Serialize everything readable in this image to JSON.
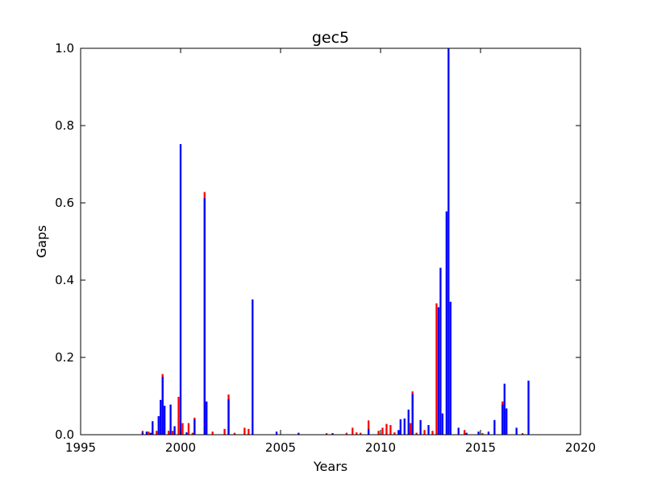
{
  "chart_data": {
    "type": "bar",
    "title": "gec5",
    "xlabel": "Years",
    "ylabel": "Gaps",
    "xlim": [
      1995,
      2020
    ],
    "ylim": [
      0.0,
      1.0
    ],
    "x_ticks": [
      "1995",
      "2000",
      "2005",
      "2010",
      "2015",
      "2020"
    ],
    "y_ticks": [
      "0.0",
      "0.2",
      "0.4",
      "0.6",
      "0.8",
      "1.0"
    ],
    "grid": false,
    "colors": {
      "red_series": "#ff0000",
      "blue_series": "#0000ff",
      "axes": "#000000",
      "background": "#ffffff"
    },
    "series": [
      {
        "color": "#ff0000",
        "points": [
          {
            "x": 1998.1,
            "y": 0.01
          },
          {
            "x": 1998.4,
            "y": 0.008
          },
          {
            "x": 1998.6,
            "y": 0.012
          },
          {
            "x": 1998.8,
            "y": 0.01
          },
          {
            "x": 1999.1,
            "y": 0.157
          },
          {
            "x": 1999.4,
            "y": 0.01
          },
          {
            "x": 1999.6,
            "y": 0.01
          },
          {
            "x": 1999.9,
            "y": 0.098
          },
          {
            "x": 2000.1,
            "y": 0.03
          },
          {
            "x": 2000.4,
            "y": 0.03
          },
          {
            "x": 2000.6,
            "y": 0.005
          },
          {
            "x": 2000.7,
            "y": 0.044
          },
          {
            "x": 2001.2,
            "y": 0.628
          },
          {
            "x": 2001.6,
            "y": 0.008
          },
          {
            "x": 2002.2,
            "y": 0.015
          },
          {
            "x": 2002.4,
            "y": 0.104
          },
          {
            "x": 2002.7,
            "y": 0.005
          },
          {
            "x": 2003.2,
            "y": 0.018
          },
          {
            "x": 2003.4,
            "y": 0.015
          },
          {
            "x": 2007.3,
            "y": 0.004
          },
          {
            "x": 2008.3,
            "y": 0.005
          },
          {
            "x": 2008.6,
            "y": 0.018
          },
          {
            "x": 2008.8,
            "y": 0.006
          },
          {
            "x": 2009.0,
            "y": 0.005
          },
          {
            "x": 2009.4,
            "y": 0.037
          },
          {
            "x": 2009.9,
            "y": 0.01
          },
          {
            "x": 2010.1,
            "y": 0.018
          },
          {
            "x": 2010.3,
            "y": 0.028
          },
          {
            "x": 2010.5,
            "y": 0.025
          },
          {
            "x": 2010.7,
            "y": 0.006
          },
          {
            "x": 2011.0,
            "y": 0.01
          },
          {
            "x": 2011.5,
            "y": 0.03
          },
          {
            "x": 2011.6,
            "y": 0.112
          },
          {
            "x": 2011.8,
            "y": 0.005
          },
          {
            "x": 2012.2,
            "y": 0.012
          },
          {
            "x": 2012.6,
            "y": 0.01
          },
          {
            "x": 2012.8,
            "y": 0.34
          },
          {
            "x": 2014.2,
            "y": 0.012
          },
          {
            "x": 2015.1,
            "y": 0.004
          },
          {
            "x": 2016.1,
            "y": 0.086
          },
          {
            "x": 2017.1,
            "y": 0.004
          }
        ]
      },
      {
        "color": "#0000ff",
        "points": [
          {
            "x": 1998.1,
            "y": 0.006
          },
          {
            "x": 1998.3,
            "y": 0.008
          },
          {
            "x": 1998.5,
            "y": 0.005
          },
          {
            "x": 1998.6,
            "y": 0.035
          },
          {
            "x": 1998.9,
            "y": 0.048
          },
          {
            "x": 1999.0,
            "y": 0.09
          },
          {
            "x": 1999.1,
            "y": 0.15
          },
          {
            "x": 1999.2,
            "y": 0.075
          },
          {
            "x": 1999.5,
            "y": 0.078
          },
          {
            "x": 1999.7,
            "y": 0.022
          },
          {
            "x": 2000.0,
            "y": 0.752
          },
          {
            "x": 2000.3,
            "y": 0.006
          },
          {
            "x": 2000.7,
            "y": 0.04
          },
          {
            "x": 2001.2,
            "y": 0.612
          },
          {
            "x": 2001.3,
            "y": 0.086
          },
          {
            "x": 2002.4,
            "y": 0.092
          },
          {
            "x": 2003.6,
            "y": 0.35
          },
          {
            "x": 2004.8,
            "y": 0.008
          },
          {
            "x": 2005.9,
            "y": 0.005
          },
          {
            "x": 2007.6,
            "y": 0.004
          },
          {
            "x": 2009.4,
            "y": 0.015
          },
          {
            "x": 2010.9,
            "y": 0.012
          },
          {
            "x": 2011.0,
            "y": 0.04
          },
          {
            "x": 2011.2,
            "y": 0.042
          },
          {
            "x": 2011.4,
            "y": 0.065
          },
          {
            "x": 2011.6,
            "y": 0.105
          },
          {
            "x": 2012.0,
            "y": 0.038
          },
          {
            "x": 2012.4,
            "y": 0.025
          },
          {
            "x": 2012.9,
            "y": 0.33
          },
          {
            "x": 2013.0,
            "y": 0.432
          },
          {
            "x": 2013.1,
            "y": 0.055
          },
          {
            "x": 2013.3,
            "y": 0.578
          },
          {
            "x": 2013.4,
            "y": 1.0
          },
          {
            "x": 2013.5,
            "y": 0.344
          },
          {
            "x": 2013.9,
            "y": 0.018
          },
          {
            "x": 2014.3,
            "y": 0.005
          },
          {
            "x": 2014.9,
            "y": 0.008
          },
          {
            "x": 2015.4,
            "y": 0.008
          },
          {
            "x": 2015.7,
            "y": 0.038
          },
          {
            "x": 2016.1,
            "y": 0.078
          },
          {
            "x": 2016.2,
            "y": 0.132
          },
          {
            "x": 2016.3,
            "y": 0.068
          },
          {
            "x": 2016.8,
            "y": 0.018
          },
          {
            "x": 2017.4,
            "y": 0.14
          }
        ]
      }
    ]
  }
}
